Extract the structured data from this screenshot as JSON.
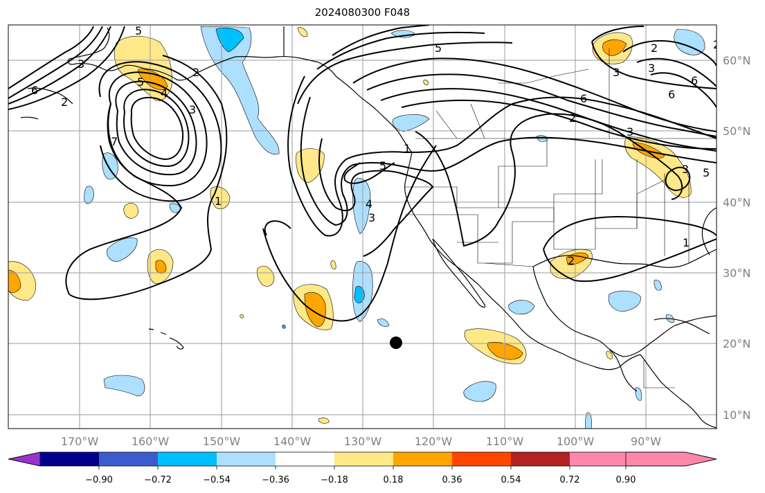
{
  "title": "2024080300 F048",
  "map": {
    "lon_ticks": [
      "170°W",
      "160°W",
      "150°W",
      "140°W",
      "130°W",
      "120°W",
      "110°W",
      "100°W",
      "90°W"
    ],
    "lat_ticks": [
      "60°N",
      "50°N",
      "40°N",
      "30°N",
      "20°N",
      "10°N"
    ],
    "contour_labels": [
      "6",
      "2",
      "3",
      "5",
      "7",
      "5",
      "4",
      "2",
      "1",
      "3",
      "5",
      "4",
      "3",
      "1",
      "2",
      "3",
      "5",
      "3",
      "5",
      "6",
      "3",
      "6",
      "2",
      "3",
      "6",
      "2",
      "2",
      "1"
    ],
    "marker": "black-dot"
  },
  "colorbar": {
    "ticks": [
      "−0.90",
      "−0.72",
      "−0.54",
      "−0.36",
      "−0.18",
      "0.18",
      "0.36",
      "0.54",
      "0.72",
      "0.90"
    ],
    "colors": [
      "#9932CC",
      "#00008B",
      "#3A5CCC",
      "#00BFFF",
      "#ADDFFF",
      "#FFFFFF",
      "#FFE888",
      "#FFA500",
      "#FF4500",
      "#B22222",
      "#FF88AA"
    ]
  }
}
